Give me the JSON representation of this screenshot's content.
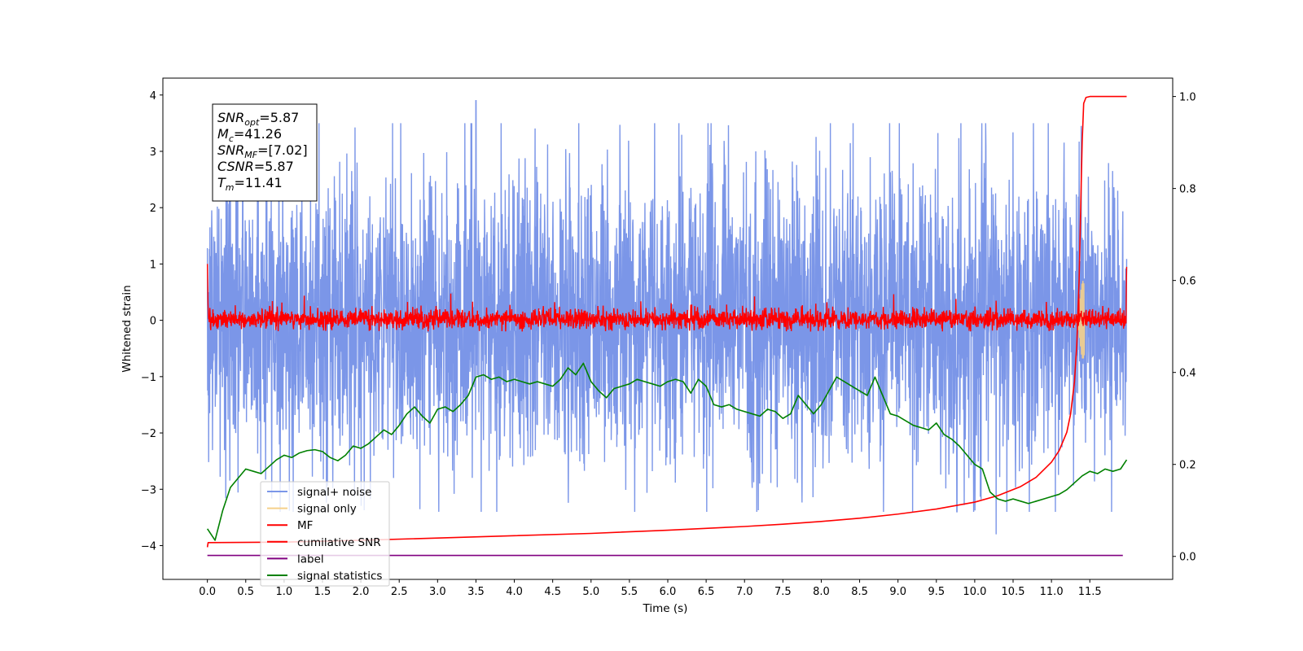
{
  "chart_data": {
    "type": "line",
    "xlabel": "Time (s)",
    "ylabel": "Whitened strain",
    "xlim": [
      -0.58,
      12.58
    ],
    "ylim": [
      -4.6,
      4.3
    ],
    "y2lim": [
      -0.05,
      1.04
    ],
    "x_ticks": [
      0.0,
      0.5,
      1.0,
      1.5,
      2.0,
      2.5,
      3.0,
      3.5,
      4.0,
      4.5,
      5.0,
      5.5,
      6.0,
      6.5,
      7.0,
      7.5,
      8.0,
      8.5,
      9.0,
      9.5,
      10.0,
      10.5,
      11.0,
      11.5
    ],
    "x_tick_labels": [
      "0.0",
      "0.5",
      "1.0",
      "1.5",
      "2.0",
      "2.5",
      "3.0",
      "3.5",
      "4.0",
      "4.5",
      "5.0",
      "5.5",
      "6.0",
      "6.5",
      "7.0",
      "7.5",
      "8.0",
      "8.5",
      "9.0",
      "9.5",
      "10.0",
      "10.5",
      "11.0",
      "11.5"
    ],
    "y_ticks": [
      -4,
      -3,
      -2,
      -1,
      0,
      1,
      2,
      3,
      4
    ],
    "y_tick_labels": [
      "−4",
      "−3",
      "−2",
      "−1",
      "0",
      "1",
      "2",
      "3",
      "4"
    ],
    "y2_ticks": [
      0.0,
      0.2,
      0.4,
      0.6,
      0.8,
      1.0
    ],
    "y2_tick_labels": [
      "0.0",
      "0.2",
      "0.4",
      "0.6",
      "0.8",
      "1.0"
    ],
    "info_box": [
      {
        "main": "SNR",
        "sub": "opt",
        "rest": "=5.87"
      },
      {
        "main": "M",
        "sub": "c",
        "rest": "=41.26"
      },
      {
        "main": "SNR",
        "sub": "MF",
        "rest": "=[7.02]"
      },
      {
        "main": "CSNR",
        "sub": "",
        "rest": "=5.87"
      },
      {
        "main": "T",
        "sub": "m",
        "rest": "=11.41"
      }
    ],
    "legend_position": "lower left",
    "series": [
      {
        "name": "signal+ noise",
        "color": "#7b96e8",
        "axis": "left",
        "style": "noise",
        "t_range": [
          0.0,
          11.98
        ],
        "approx_envelope": [
          -2.5,
          2.6
        ],
        "max_peak_x": [
          3.5,
          3.9
        ],
        "min_peak_x": [
          10.28,
          -3.8
        ]
      },
      {
        "name": "signal only",
        "color": "#f5d08a",
        "axis": "left",
        "style": "chirp",
        "center_x": 11.41,
        "amplitude": 0.7
      },
      {
        "name": "MF",
        "color": "#ff0000",
        "axis": "left",
        "style": "noise",
        "t_range": [
          0.0,
          11.98
        ],
        "approx_envelope": [
          -0.2,
          0.3
        ],
        "start_value": 1.0,
        "end_value": 0.95
      },
      {
        "name": "cumilative SNR",
        "color": "#ff0000",
        "axis": "right",
        "x": [
          0.0,
          0.01,
          1.0,
          2.0,
          3.0,
          4.0,
          5.0,
          6.0,
          7.0,
          7.5,
          8.0,
          8.5,
          9.0,
          9.5,
          10.0,
          10.3,
          10.6,
          10.8,
          11.0,
          11.1,
          11.2,
          11.25,
          11.3,
          11.33,
          11.36,
          11.38,
          11.4,
          11.42,
          11.45,
          11.5,
          11.98
        ],
        "values": [
          0.02,
          0.03,
          0.031,
          0.035,
          0.04,
          0.045,
          0.05,
          0.057,
          0.065,
          0.07,
          0.076,
          0.083,
          0.092,
          0.103,
          0.118,
          0.132,
          0.152,
          0.172,
          0.205,
          0.23,
          0.27,
          0.31,
          0.38,
          0.46,
          0.6,
          0.75,
          0.9,
          0.985,
          0.998,
          1.0,
          1.0
        ]
      },
      {
        "name": "label",
        "color": "#800080",
        "axis": "right",
        "x": [
          0.0,
          11.93
        ],
        "values": [
          0.002,
          0.002
        ]
      },
      {
        "name": "signal statistics",
        "color": "#008000",
        "axis": "right",
        "x": [
          0.0,
          0.1,
          0.2,
          0.3,
          0.4,
          0.5,
          0.6,
          0.7,
          0.8,
          0.9,
          1.0,
          1.1,
          1.2,
          1.3,
          1.4,
          1.5,
          1.6,
          1.7,
          1.8,
          1.9,
          2.0,
          2.1,
          2.2,
          2.3,
          2.4,
          2.5,
          2.6,
          2.7,
          2.8,
          2.9,
          3.0,
          3.1,
          3.2,
          3.3,
          3.4,
          3.5,
          3.6,
          3.7,
          3.8,
          3.9,
          4.0,
          4.1,
          4.2,
          4.3,
          4.4,
          4.5,
          4.6,
          4.7,
          4.8,
          4.9,
          5.0,
          5.1,
          5.2,
          5.3,
          5.4,
          5.5,
          5.6,
          5.7,
          5.8,
          5.9,
          6.0,
          6.1,
          6.2,
          6.3,
          6.4,
          6.5,
          6.6,
          6.7,
          6.8,
          6.9,
          7.0,
          7.1,
          7.2,
          7.3,
          7.4,
          7.5,
          7.6,
          7.7,
          7.8,
          7.9,
          8.0,
          8.1,
          8.2,
          8.3,
          8.4,
          8.5,
          8.6,
          8.7,
          8.8,
          8.9,
          9.0,
          9.1,
          9.2,
          9.3,
          9.4,
          9.5,
          9.6,
          9.7,
          9.8,
          9.9,
          10.0,
          10.1,
          10.2,
          10.3,
          10.4,
          10.5,
          10.6,
          10.7,
          10.8,
          10.9,
          11.0,
          11.1,
          11.2,
          11.3,
          11.4,
          11.5,
          11.6,
          11.7,
          11.8,
          11.9,
          11.98
        ],
        "values": [
          0.06,
          0.035,
          0.1,
          0.15,
          0.17,
          0.19,
          0.185,
          0.18,
          0.195,
          0.21,
          0.22,
          0.215,
          0.225,
          0.23,
          0.232,
          0.228,
          0.215,
          0.208,
          0.22,
          0.24,
          0.235,
          0.245,
          0.26,
          0.275,
          0.265,
          0.285,
          0.31,
          0.325,
          0.305,
          0.29,
          0.32,
          0.325,
          0.315,
          0.33,
          0.35,
          0.39,
          0.395,
          0.385,
          0.39,
          0.38,
          0.385,
          0.38,
          0.375,
          0.38,
          0.375,
          0.37,
          0.385,
          0.41,
          0.395,
          0.42,
          0.38,
          0.36,
          0.345,
          0.365,
          0.37,
          0.375,
          0.385,
          0.38,
          0.375,
          0.37,
          0.38,
          0.385,
          0.38,
          0.355,
          0.385,
          0.37,
          0.33,
          0.325,
          0.33,
          0.32,
          0.315,
          0.31,
          0.305,
          0.32,
          0.315,
          0.3,
          0.31,
          0.35,
          0.33,
          0.31,
          0.33,
          0.36,
          0.39,
          0.38,
          0.37,
          0.36,
          0.35,
          0.39,
          0.35,
          0.31,
          0.305,
          0.295,
          0.285,
          0.28,
          0.275,
          0.29,
          0.265,
          0.255,
          0.24,
          0.22,
          0.2,
          0.19,
          0.14,
          0.125,
          0.12,
          0.125,
          0.12,
          0.115,
          0.12,
          0.125,
          0.13,
          0.135,
          0.145,
          0.16,
          0.175,
          0.185,
          0.18,
          0.19,
          0.185,
          0.19,
          0.21
        ]
      }
    ]
  }
}
